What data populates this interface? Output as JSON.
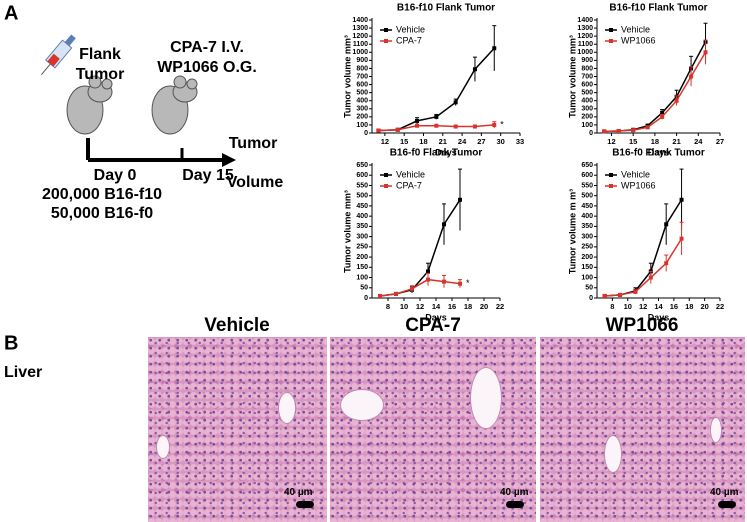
{
  "panels": [
    "A",
    "B"
  ],
  "diagram": {
    "tumor_site": [
      "Flank",
      "Tumor"
    ],
    "treatment": [
      "CPA-7 I.V.",
      "WP1066 O.G."
    ],
    "days": [
      "Day 0",
      "Day 15"
    ],
    "outcome": [
      "Tumor",
      "Volume"
    ],
    "cells": [
      "200,000 B16-f10",
      "50,000 B16-f0"
    ]
  },
  "chart_data": [
    {
      "type": "line",
      "title": "B16-f10 Flank Tumor",
      "x_label": "Days",
      "y_label": "Tumor volume mm³",
      "annotation": "*",
      "x": [
        11,
        14,
        17,
        20,
        23,
        26,
        29
      ],
      "series": [
        {
          "name": "Vehicle",
          "color": "#000000",
          "values": [
            30,
            40,
            150,
            200,
            380,
            790,
            1050
          ],
          "errors": [
            10,
            10,
            40,
            30,
            40,
            150,
            280
          ]
        },
        {
          "name": "CPA-7",
          "color": "#d9342b",
          "values": [
            30,
            40,
            90,
            90,
            80,
            80,
            100
          ],
          "errors": [
            5,
            8,
            15,
            15,
            15,
            15,
            40
          ]
        }
      ],
      "xlim": [
        10,
        33
      ],
      "xticks": [
        12,
        15,
        18,
        21,
        24,
        27,
        30,
        33
      ],
      "ylim": [
        0,
        1400
      ],
      "yticks": [
        0,
        100,
        200,
        300,
        400,
        500,
        600,
        700,
        800,
        900,
        1000,
        1100,
        1200,
        1300,
        1400
      ]
    },
    {
      "type": "line",
      "title": "B16-f10 Flank Tumor",
      "x_label": "Days",
      "y_label": "Tumor volume mm³",
      "x": [
        11,
        13,
        15,
        17,
        19,
        21,
        23,
        25
      ],
      "series": [
        {
          "name": "Vehicle",
          "color": "#000000",
          "values": [
            20,
            25,
            40,
            90,
            250,
            450,
            800,
            1130
          ],
          "errors": [
            5,
            5,
            10,
            20,
            40,
            80,
            150,
            230
          ]
        },
        {
          "name": "WP1066",
          "color": "#d9342b",
          "values": [
            20,
            25,
            35,
            70,
            200,
            400,
            700,
            1000
          ],
          "errors": [
            5,
            5,
            10,
            15,
            30,
            60,
            120,
            150
          ]
        }
      ],
      "xlim": [
        10,
        27
      ],
      "xticks": [
        12,
        15,
        18,
        21,
        24,
        27
      ],
      "ylim": [
        0,
        1400
      ],
      "yticks": [
        0,
        100,
        200,
        300,
        400,
        500,
        600,
        700,
        800,
        900,
        1000,
        1100,
        1200,
        1300,
        1400
      ]
    },
    {
      "type": "line",
      "title": "B16-f0 Flank Tumor",
      "x_label": "Days",
      "y_label": "Tumor volume mm³",
      "annotation": "*",
      "x": [
        7,
        9,
        11,
        13,
        15,
        17
      ],
      "series": [
        {
          "name": "Vehicle",
          "color": "#000000",
          "values": [
            10,
            20,
            40,
            130,
            360,
            480
          ],
          "errors": [
            5,
            5,
            15,
            40,
            100,
            150
          ]
        },
        {
          "name": "CPA-7",
          "color": "#d9342b",
          "values": [
            10,
            20,
            45,
            90,
            80,
            70
          ],
          "errors": [
            5,
            5,
            15,
            30,
            30,
            20
          ]
        }
      ],
      "xlim": [
        6,
        22
      ],
      "xticks": [
        8,
        10,
        12,
        14,
        16,
        18,
        20,
        22
      ],
      "ylim": [
        0,
        650
      ],
      "yticks": [
        0,
        50,
        100,
        150,
        200,
        250,
        300,
        350,
        400,
        450,
        500,
        550,
        600,
        650
      ]
    },
    {
      "type": "line",
      "title": "B16-f0 Flank Tumor",
      "x_label": "Days",
      "y_label": "Tumor volume m m³",
      "x": [
        7,
        9,
        11,
        13,
        15,
        17
      ],
      "series": [
        {
          "name": "Vehicle",
          "color": "#000000",
          "values": [
            10,
            15,
            35,
            130,
            360,
            480
          ],
          "errors": [
            5,
            5,
            15,
            40,
            100,
            150
          ]
        },
        {
          "name": "WP1066",
          "color": "#d9342b",
          "values": [
            10,
            15,
            30,
            100,
            170,
            290
          ],
          "errors": [
            5,
            5,
            10,
            30,
            40,
            80
          ]
        }
      ],
      "xlim": [
        6,
        22
      ],
      "xticks": [
        8,
        10,
        12,
        14,
        16,
        18,
        20,
        22
      ],
      "ylim": [
        0,
        650
      ],
      "yticks": [
        0,
        50,
        100,
        150,
        200,
        250,
        300,
        350,
        400,
        450,
        500,
        550,
        600,
        650
      ]
    }
  ],
  "histology": {
    "tissue": "Liver",
    "groups": [
      "Vehicle",
      "CPA-7",
      "WP1066"
    ],
    "scale_bar": "40 µm"
  }
}
